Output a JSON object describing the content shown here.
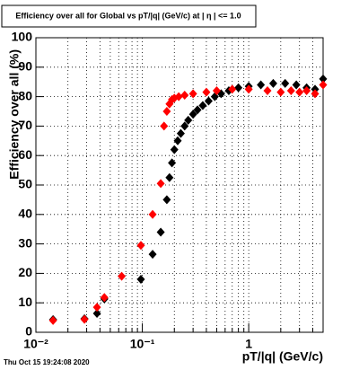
{
  "chart_data": {
    "type": "scatter",
    "title": "Efficiency over all for Global vs pT/|q| (GeV/c) at |  η | <= 1.0",
    "x_label": "pT/|q| (GeV/c)",
    "y_label": "Efficiency over all (%)",
    "footer": "Thu Oct 15 19:24:08 2020",
    "log_x": true,
    "grid": true,
    "xlim": [
      0.01,
      5
    ],
    "ylim": [
      0,
      100
    ],
    "xticks": [
      {
        "value": 0.01,
        "label": "10⁻²"
      },
      {
        "value": 0.1,
        "label": "10⁻¹"
      },
      1
    ],
    "xminorticks": [
      0.02,
      0.03,
      0.04,
      0.05,
      0.06,
      0.07,
      0.08,
      0.09,
      0.2,
      0.3,
      0.4,
      0.5,
      0.6,
      0.7,
      0.8,
      0.9,
      2,
      3,
      4
    ],
    "yticks": [
      0,
      10,
      20,
      30,
      40,
      50,
      60,
      70,
      80,
      90,
      100
    ],
    "series": [
      {
        "color": "#000000",
        "x": [
          0.0145,
          0.0286,
          0.0375,
          0.044,
          0.097,
          0.125,
          0.149,
          0.17,
          0.18,
          0.19,
          0.2,
          0.215,
          0.23,
          0.25,
          0.27,
          0.3,
          0.33,
          0.37,
          0.42,
          0.48,
          0.55,
          0.65,
          0.8,
          1.0,
          1.3,
          1.7,
          2.2,
          2.8,
          3.5,
          4.2,
          5.0
        ],
        "values": [
          4.3,
          4.6,
          6.4,
          11.3,
          18,
          26.5,
          34,
          45,
          52.5,
          57.5,
          62,
          65,
          67.5,
          70,
          72,
          74,
          75.5,
          77,
          78.5,
          80,
          81,
          82,
          83,
          83.5,
          84,
          84.5,
          84.5,
          84,
          83,
          82.5,
          86
        ]
      },
      {
        "color": "#ff0000",
        "x": [
          0.0145,
          0.0286,
          0.0375,
          0.044,
          0.064,
          0.097,
          0.125,
          0.149,
          0.16,
          0.17,
          0.18,
          0.19,
          0.2,
          0.22,
          0.25,
          0.3,
          0.4,
          0.5,
          0.7,
          1.0,
          1.5,
          2.0,
          2.5,
          3.0,
          3.5,
          4.2,
          5.0
        ],
        "values": [
          4.0,
          4.4,
          8.5,
          11.8,
          19,
          29.5,
          40,
          50.5,
          70,
          75,
          77.5,
          79,
          79.5,
          80,
          80.5,
          81,
          81.5,
          82,
          82.5,
          82.5,
          82,
          81.5,
          82,
          81.5,
          82,
          81,
          84
        ]
      }
    ]
  }
}
